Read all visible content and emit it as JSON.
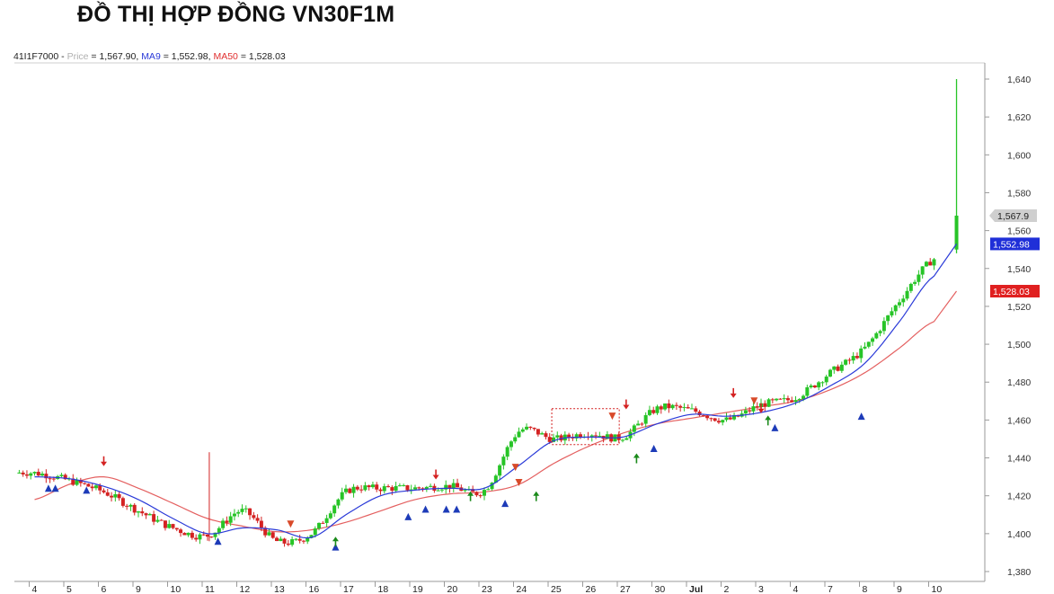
{
  "page_title": "ĐỒ THỊ HỢP ĐỒNG VN30F1M",
  "legend": {
    "symbol": "41I1F7000",
    "separator": " - ",
    "price_label": "Price",
    "price_value": " = 1,567.90,",
    "ma9_label": "MA9",
    "ma9_value": " = 1,552.98,",
    "ma50_label": "MA50",
    "ma50_value": " = 1,528.03"
  },
  "colors": {
    "up": "#27c427",
    "down": "#d42222",
    "ma9": "#2a3ad8",
    "ma50": "#e46060",
    "axis": "#9a9a9a",
    "grid": "#e0e0e0",
    "marker_up": "#1d3bb8",
    "marker_down": "#d84a2a",
    "arrow_up": "#1a8a1a",
    "arrow_down": "#d42222"
  },
  "chart_data": {
    "type": "candlestick",
    "grid": false,
    "ylim": [
      1375,
      1650
    ],
    "y_ticks": [
      1380,
      1400,
      1420,
      1440,
      1460,
      1480,
      1500,
      1520,
      1540,
      1560,
      1580,
      1600,
      1620,
      1640
    ],
    "x_tick_labels": [
      "4",
      "5",
      "6",
      "9",
      "10",
      "11",
      "12",
      "13",
      "16",
      "17",
      "18",
      "19",
      "20",
      "23",
      "24",
      "25",
      "26",
      "27",
      "30",
      "Jul",
      "2",
      "3",
      "4",
      "7",
      "8",
      "9",
      "10"
    ],
    "session_close": [
      1432,
      1428,
      1422,
      1412,
      1403,
      1399,
      1412,
      1396,
      1400,
      1422,
      1424,
      1424,
      1425,
      1423,
      1454,
      1450,
      1453,
      1451,
      1466,
      1465,
      1460,
      1468,
      1472,
      1485,
      1498,
      1523,
      1545
    ],
    "ma9_session": [
      1430,
      1429,
      1425,
      1418,
      1408,
      1400,
      1403,
      1402,
      1398,
      1410,
      1420,
      1423,
      1424,
      1424,
      1436,
      1449,
      1451,
      1451,
      1458,
      1463,
      1462,
      1464,
      1469,
      1478,
      1490,
      1512,
      1536
    ],
    "ma50_session": [
      1418,
      1426,
      1430,
      1424,
      1416,
      1408,
      1404,
      1401,
      1402,
      1406,
      1412,
      1418,
      1421,
      1422,
      1426,
      1437,
      1446,
      1453,
      1458,
      1461,
      1464,
      1467,
      1470,
      1476,
      1485,
      1498,
      1512
    ],
    "final_spike": {
      "high": 1640,
      "close": 1567.9
    },
    "price_labels": {
      "price": {
        "value": 1567.9,
        "text": "1,567.9"
      },
      "ma9": {
        "value": 1552.98,
        "text": "1,552.98"
      },
      "ma50": {
        "value": 1528.03,
        "text": "1,528.03"
      }
    },
    "markers_up": [
      [
        0.4,
        1424
      ],
      [
        0.6,
        1424
      ],
      [
        1.5,
        1423
      ],
      [
        5.3,
        1396
      ],
      [
        8.7,
        1393
      ],
      [
        10.8,
        1409
      ],
      [
        11.3,
        1413
      ],
      [
        11.9,
        1413
      ],
      [
        12.2,
        1413
      ],
      [
        13.6,
        1416
      ],
      [
        17.9,
        1445
      ],
      [
        21.4,
        1456
      ],
      [
        23.9,
        1462
      ]
    ],
    "markers_down": [
      [
        7.4,
        1405
      ],
      [
        13.9,
        1435
      ],
      [
        14.0,
        1427
      ],
      [
        16.7,
        1462
      ],
      [
        20.8,
        1470
      ]
    ],
    "arrows_up": [
      [
        8.7,
        1396
      ],
      [
        12.6,
        1420
      ],
      [
        14.5,
        1420
      ],
      [
        17.4,
        1440
      ],
      [
        21.2,
        1460
      ]
    ],
    "arrows_down": [
      [
        2.0,
        1438
      ],
      [
        11.6,
        1431
      ],
      [
        17.1,
        1468
      ],
      [
        20.2,
        1474
      ],
      [
        21.0,
        1466
      ]
    ]
  }
}
